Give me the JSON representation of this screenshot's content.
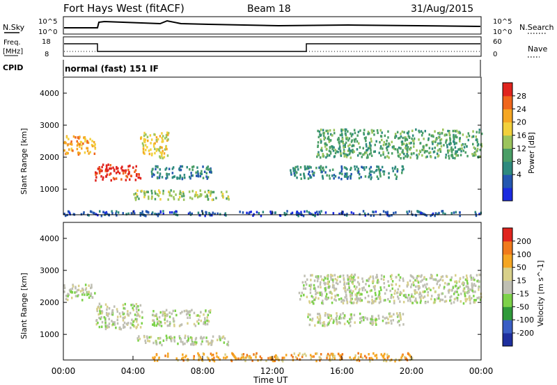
{
  "header": {
    "title": "Fort Hays West (fitACF)",
    "beam": "Beam 18",
    "date": "31/Aug/2015"
  },
  "top_panels": {
    "nsky_label": "N.Sky",
    "nsearch_label": "N.Search",
    "nsky_left_ticks": [
      "10^5",
      "10^0"
    ],
    "nsky_right_ticks": [
      "10^5",
      "10^0"
    ],
    "freq_label_line1": "Freq.",
    "freq_label_line2": "[MHz]",
    "freq_ticks": [
      "18",
      "8"
    ],
    "nave_label": "Nave",
    "nave_ticks": [
      "60",
      "0"
    ],
    "cpid_label": "CPID",
    "cpid_text": "normal (fast) 151 IF"
  },
  "chart_data": [
    {
      "type": "heatmap",
      "name": "Power",
      "ylabel": "Slant Range [km]",
      "ylim": [
        200,
        4500
      ],
      "yticks": [
        "4000",
        "3000",
        "2000",
        "1000"
      ],
      "colorbar_label": "Power [dB]",
      "colorbar_ticks": [
        "28",
        "24",
        "20",
        "16",
        "12",
        "8",
        "4"
      ],
      "colors": [
        "#1b2be0",
        "#2457b0",
        "#2e8a7e",
        "#4a9e66",
        "#9bc45c",
        "#f2d03c",
        "#f5a623",
        "#f0661c",
        "#e0241e"
      ],
      "bands": [
        {
          "t": [
            0.0,
            1.8
          ],
          "r": [
            2100,
            2700
          ],
          "level": 6
        },
        {
          "t": [
            1.8,
            4.4
          ],
          "r": [
            1300,
            1800
          ],
          "level": 8
        },
        {
          "t": [
            4.4,
            6.0
          ],
          "r": [
            2000,
            2800
          ],
          "level": 5
        },
        {
          "t": [
            5.0,
            8.5
          ],
          "r": [
            1350,
            1750
          ],
          "level": 2
        },
        {
          "t": [
            4.0,
            9.5
          ],
          "r": [
            700,
            1000
          ],
          "level": 4
        },
        {
          "t": [
            13.0,
            19.5
          ],
          "r": [
            1350,
            1750
          ],
          "level": 2
        },
        {
          "t": [
            14.5,
            24.0
          ],
          "r": [
            2000,
            2900
          ],
          "level": 3
        },
        {
          "t": [
            0.0,
            24.0
          ],
          "r": [
            200,
            350
          ],
          "level": 1
        }
      ]
    },
    {
      "type": "heatmap",
      "name": "Velocity",
      "ylabel": "Slant Range [km]",
      "ylim": [
        200,
        4500
      ],
      "yticks": [
        "4000",
        "3000",
        "2000",
        "1000"
      ],
      "colorbar_label": "Velocity [m s^-1]",
      "colorbar_ticks": [
        "200",
        "100",
        "50",
        "15",
        "-15",
        "-50",
        "-100",
        "-200"
      ],
      "colors": [
        "#1e2f9e",
        "#3a5ec4",
        "#2f9a3a",
        "#7dd24a",
        "#bfbfb3",
        "#d8d08a",
        "#f5a623",
        "#f07a1c",
        "#e0241e"
      ],
      "bands": [
        {
          "t": [
            0.0,
            1.8
          ],
          "r": [
            2100,
            2600
          ],
          "level": 4
        },
        {
          "t": [
            1.8,
            4.5
          ],
          "r": [
            1200,
            2000
          ],
          "level": 4
        },
        {
          "t": [
            5.0,
            8.5
          ],
          "r": [
            1300,
            1800
          ],
          "level": 4
        },
        {
          "t": [
            4.0,
            9.5
          ],
          "r": [
            700,
            1000
          ],
          "level": 4
        },
        {
          "t": [
            13.5,
            24.0
          ],
          "r": [
            2000,
            2900
          ],
          "level": 4
        },
        {
          "t": [
            14.0,
            19.5
          ],
          "r": [
            1300,
            1700
          ],
          "level": 4
        },
        {
          "t": [
            5.0,
            20.0
          ],
          "r": [
            200,
            450
          ],
          "level": 6
        }
      ]
    }
  ],
  "time_axis": {
    "ticks": [
      "00:00",
      "04:00",
      "08:00",
      "12:00",
      "16:00",
      "20:00",
      "00:00"
    ],
    "label": "Time UT"
  }
}
